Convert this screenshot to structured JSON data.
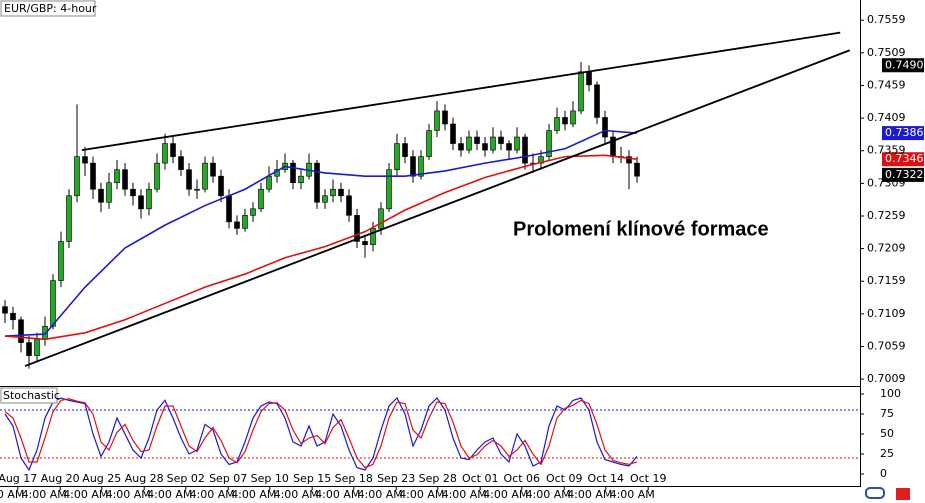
{
  "chart_data": [
    {
      "type": "candlestick",
      "title": "EUR/GBP: 4-hour",
      "annotation": "Prolomení klínové formace",
      "xlim": [
        -0.625,
        106.875
      ],
      "ylim": [
        0.7,
        0.759
      ],
      "yticks": [
        0.7559,
        0.7509,
        0.7459,
        0.7409,
        0.7359,
        0.7309,
        0.7259,
        0.7209,
        0.7159,
        0.7109,
        0.7059,
        0.7009
      ],
      "xticks": [
        {
          "value": 1.6,
          "label": "Aug 17"
        },
        {
          "value": 6.9,
          "label": "Aug 20"
        },
        {
          "value": 12.1,
          "label": "Aug 25"
        },
        {
          "value": 17.4,
          "label": "Aug 28"
        },
        {
          "value": 22.6,
          "label": "Sep 02"
        },
        {
          "value": 27.9,
          "label": "Sep 07"
        },
        {
          "value": 33.1,
          "label": "Sep 10"
        },
        {
          "value": 38.4,
          "label": "Sep 15"
        },
        {
          "value": 43.6,
          "label": "Sep 18"
        },
        {
          "value": 48.9,
          "label": "Sep 23"
        },
        {
          "value": 54.1,
          "label": "Sep 28"
        },
        {
          "value": 59.4,
          "label": "Oct 01"
        },
        {
          "value": 64.6,
          "label": "Oct 06"
        },
        {
          "value": 69.9,
          "label": "Oct 09"
        },
        {
          "value": 75.1,
          "label": "Oct 14"
        },
        {
          "value": 80.4,
          "label": "Oct 19"
        }
      ],
      "time_label": "4:00 AM",
      "up_color": "#22aa22",
      "down_color": "#000000",
      "open": [
        0.712,
        0.711,
        0.71,
        0.7065,
        0.7045,
        0.707,
        0.709,
        0.716,
        0.722,
        0.729,
        0.735,
        0.734,
        0.73,
        0.728,
        0.731,
        0.733,
        0.73,
        0.729,
        0.727,
        0.73,
        0.734,
        0.737,
        0.735,
        0.733,
        0.73,
        0.73,
        0.734,
        0.732,
        0.729,
        0.725,
        0.724,
        0.726,
        0.727,
        0.73,
        0.732,
        0.733,
        0.734,
        0.731,
        0.732,
        0.734,
        0.728,
        0.729,
        0.73,
        0.729,
        0.726,
        0.722,
        0.7215,
        0.724,
        0.727,
        0.733,
        0.737,
        0.735,
        0.732,
        0.735,
        0.739,
        0.742,
        0.74,
        0.737,
        0.736,
        0.738,
        0.737,
        0.736,
        0.738,
        0.737,
        0.736,
        0.738,
        0.734,
        0.734,
        0.735,
        0.739,
        0.741,
        0.74,
        0.742,
        0.748,
        0.746,
        0.741,
        0.738,
        0.735,
        0.735,
        0.734
      ],
      "high": [
        0.713,
        0.712,
        0.7105,
        0.7075,
        0.708,
        0.7105,
        0.717,
        0.7235,
        0.73,
        0.743,
        0.7365,
        0.735,
        0.731,
        0.7325,
        0.7345,
        0.734,
        0.731,
        0.73,
        0.731,
        0.7355,
        0.7385,
        0.738,
        0.736,
        0.734,
        0.7315,
        0.735,
        0.735,
        0.733,
        0.73,
        0.726,
        0.727,
        0.728,
        0.731,
        0.7335,
        0.7345,
        0.7355,
        0.7345,
        0.733,
        0.7355,
        0.7345,
        0.73,
        0.7315,
        0.731,
        0.73,
        0.727,
        0.723,
        0.725,
        0.728,
        0.734,
        0.7385,
        0.738,
        0.736,
        0.736,
        0.74,
        0.7435,
        0.743,
        0.741,
        0.738,
        0.739,
        0.739,
        0.738,
        0.7395,
        0.739,
        0.7375,
        0.7395,
        0.7385,
        0.7355,
        0.736,
        0.74,
        0.7425,
        0.742,
        0.7435,
        0.7495,
        0.749,
        0.7465,
        0.742,
        0.739,
        0.7365,
        0.736,
        0.735
      ],
      "low": [
        0.7095,
        0.7085,
        0.705,
        0.7025,
        0.7035,
        0.706,
        0.7085,
        0.715,
        0.721,
        0.728,
        0.732,
        0.7285,
        0.7265,
        0.727,
        0.73,
        0.729,
        0.7275,
        0.7255,
        0.726,
        0.7295,
        0.733,
        0.734,
        0.732,
        0.729,
        0.7285,
        0.7295,
        0.731,
        0.728,
        0.724,
        0.723,
        0.7235,
        0.725,
        0.7265,
        0.7295,
        0.731,
        0.7325,
        0.73,
        0.73,
        0.7315,
        0.727,
        0.727,
        0.728,
        0.728,
        0.725,
        0.721,
        0.7195,
        0.7205,
        0.723,
        0.7265,
        0.732,
        0.734,
        0.731,
        0.7315,
        0.7345,
        0.738,
        0.739,
        0.736,
        0.735,
        0.7355,
        0.736,
        0.735,
        0.7355,
        0.736,
        0.7345,
        0.7355,
        0.733,
        0.7325,
        0.733,
        0.7345,
        0.7385,
        0.739,
        0.7395,
        0.7415,
        0.745,
        0.74,
        0.737,
        0.734,
        0.734,
        0.73,
        0.731
      ],
      "close": [
        0.711,
        0.71,
        0.7065,
        0.7045,
        0.707,
        0.709,
        0.716,
        0.722,
        0.729,
        0.735,
        0.734,
        0.73,
        0.728,
        0.731,
        0.733,
        0.73,
        0.729,
        0.727,
        0.73,
        0.734,
        0.737,
        0.735,
        0.733,
        0.73,
        0.73,
        0.734,
        0.732,
        0.729,
        0.725,
        0.724,
        0.726,
        0.727,
        0.73,
        0.732,
        0.733,
        0.734,
        0.731,
        0.732,
        0.734,
        0.728,
        0.729,
        0.73,
        0.729,
        0.726,
        0.722,
        0.7215,
        0.724,
        0.727,
        0.733,
        0.737,
        0.735,
        0.732,
        0.735,
        0.739,
        0.742,
        0.74,
        0.737,
        0.736,
        0.738,
        0.737,
        0.736,
        0.738,
        0.737,
        0.736,
        0.738,
        0.734,
        0.734,
        0.735,
        0.739,
        0.741,
        0.74,
        0.742,
        0.748,
        0.746,
        0.741,
        0.738,
        0.735,
        0.735,
        0.734,
        0.732
      ],
      "series": [
        {
          "color": "#1a1ad0",
          "x": [
            0,
            5,
            10,
            15,
            20,
            25,
            30,
            35,
            40,
            45,
            50,
            55,
            60,
            65,
            70,
            75,
            79
          ],
          "values": [
            0.7075,
            0.7078,
            0.715,
            0.721,
            0.7245,
            0.7275,
            0.73,
            0.7335,
            0.7325,
            0.732,
            0.732,
            0.7328,
            0.734,
            0.735,
            0.7362,
            0.739,
            0.7386
          ]
        },
        {
          "color": "#e01010",
          "x": [
            0,
            5,
            10,
            15,
            20,
            25,
            30,
            35,
            40,
            45,
            50,
            55,
            60,
            65,
            70,
            75,
            79
          ],
          "values": [
            0.7075,
            0.707,
            0.708,
            0.71,
            0.7125,
            0.715,
            0.717,
            0.7195,
            0.7212,
            0.7235,
            0.7268,
            0.7295,
            0.7318,
            0.7335,
            0.735,
            0.7352,
            0.7346
          ]
        }
      ],
      "trendlines": [
        {
          "x": [
            9.6,
            104.4
          ],
          "values": [
            0.736,
            0.754
          ]
        },
        {
          "x": [
            2.5,
            105.6
          ],
          "values": [
            0.7029,
            0.7513
          ]
        }
      ],
      "price_labels": [
        {
          "value": 0.749,
          "label": "0.7490",
          "color": "#000000"
        },
        {
          "value": 0.7386,
          "label": "0.7386",
          "color": "#1a1ad0"
        },
        {
          "value": 0.7346,
          "label": "0.7346",
          "color": "#e01010"
        },
        {
          "value": 0.7322,
          "label": "0.7322",
          "color": "#000000"
        }
      ]
    },
    {
      "type": "line",
      "title": "Stochastic",
      "xlim": [
        -0.625,
        106.875
      ],
      "ylim": [
        -13.75,
        107.5
      ],
      "yticks": [
        100,
        75,
        50,
        25,
        0
      ],
      "levels": [
        80,
        20
      ],
      "series": [
        {
          "color": "#1a1ad0",
          "values": [
            75,
            60,
            20,
            5,
            30,
            70,
            90,
            95,
            92,
            90,
            88,
            50,
            22,
            40,
            70,
            50,
            30,
            20,
            45,
            80,
            92,
            70,
            45,
            25,
            30,
            62,
            55,
            25,
            12,
            15,
            40,
            70,
            85,
            90,
            88,
            70,
            40,
            35,
            60,
            35,
            40,
            75,
            60,
            30,
            8,
            5,
            20,
            55,
            85,
            95,
            75,
            35,
            55,
            85,
            95,
            80,
            45,
            20,
            18,
            30,
            40,
            45,
            25,
            15,
            50,
            35,
            10,
            15,
            60,
            85,
            80,
            92,
            95,
            80,
            40,
            18,
            15,
            12,
            10,
            22
          ]
        },
        {
          "color": "#e01010",
          "values": [
            78,
            70,
            45,
            15,
            15,
            45,
            78,
            92,
            94,
            91,
            89,
            75,
            40,
            30,
            52,
            62,
            42,
            28,
            30,
            60,
            85,
            85,
            60,
            35,
            28,
            45,
            58,
            42,
            20,
            14,
            28,
            55,
            78,
            88,
            89,
            80,
            55,
            38,
            45,
            48,
            38,
            58,
            68,
            45,
            20,
            8,
            12,
            35,
            70,
            90,
            88,
            55,
            45,
            70,
            90,
            88,
            65,
            35,
            20,
            24,
            35,
            42,
            35,
            22,
            30,
            42,
            25,
            12,
            35,
            70,
            82,
            86,
            92,
            88,
            62,
            30,
            17,
            14,
            12,
            15
          ]
        }
      ]
    }
  ]
}
